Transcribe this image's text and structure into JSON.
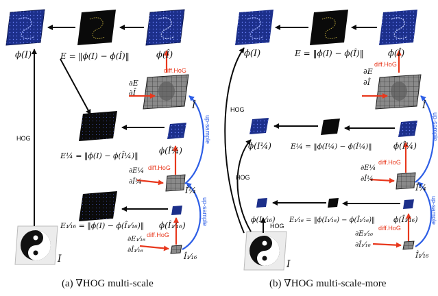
{
  "captions": {
    "a": "(a)  ∇HOG multi-scale",
    "b": "(b)  ∇HOG multi-scale-more"
  },
  "labels": {
    "hog": "HOG",
    "diff_hog": "diff.HoG",
    "up_sample": "up-sample",
    "phi_I": "ϕ(I)",
    "phi_Ihat": "ϕ(Î)",
    "Ihat": "Î",
    "I": "I",
    "E_full": "E = ‖ϕ(I) − ϕ(Î)‖",
    "dE": "∂E",
    "dI": "∂Î",
    "E_q": "E¼ = ‖ϕ(I) − ϕ(Î¼)‖",
    "E_q_b": "E¼ = ‖ϕ(I¼) − ϕ(Î¼)‖",
    "phi_Iq": "ϕ(Î¼)",
    "phi_Iq_plain": "ϕ(I¼)",
    "Iq": "Î¼",
    "dEq": "∂E¼",
    "dIq": "∂Î¼",
    "E_s": "E₁⁄₁₆ = ‖ϕ(I) − ϕ(Î₁⁄₁₆)‖",
    "E_s_b": "E₁⁄₁₆ = ‖ϕ(I₁⁄₁₆) − ϕ(Î₁⁄₁₆)‖",
    "phi_Is": "ϕ(Î₁⁄₁₆)",
    "phi_Is_plain": "ϕ(I₁⁄₁₆)",
    "Is": "Î₁⁄₁₆",
    "dEs": "∂E₁⁄₁₆",
    "dIs": "∂Î₁⁄₁₆"
  },
  "colors": {
    "navy": "#1c2f8a",
    "black": "#0a0a0a",
    "red": "#e8381d",
    "blue": "#2d5ee6",
    "grid": "#444444"
  }
}
